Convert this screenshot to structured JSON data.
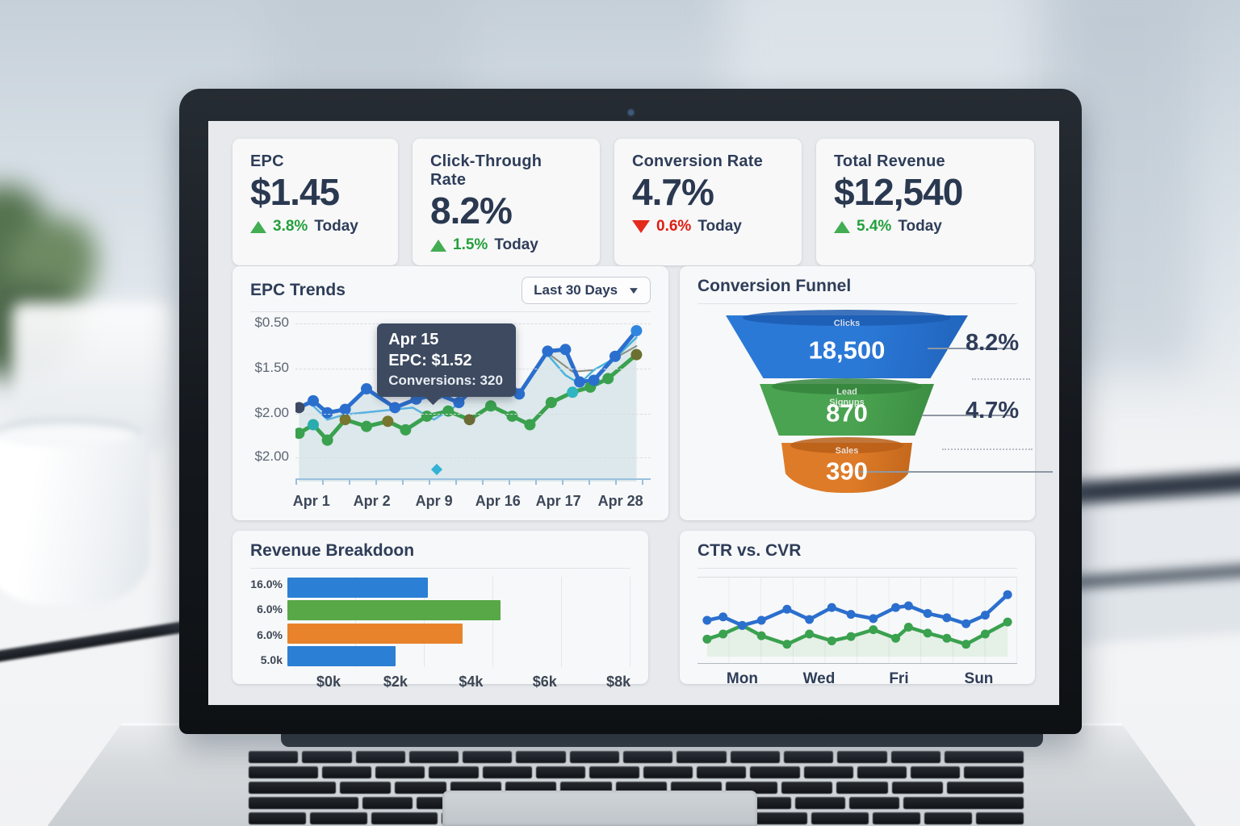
{
  "colors": {
    "accent_blue": "#2b6fce",
    "accent_green": "#3aa14f",
    "accent_orange": "#de7b28",
    "kpi_green": "#23a03c",
    "kpi_red": "#de1d12",
    "navy_text": "#2e3d59",
    "tooltip_bg": "#3d4a60"
  },
  "kpis": [
    {
      "title": "EPC",
      "value": "$1.45",
      "delta": "3.8%",
      "delta_suffix": "Today",
      "direction": "up"
    },
    {
      "title": "Click-Through Rate",
      "value": "8.2%",
      "delta": "1.5%",
      "delta_suffix": "Today",
      "direction": "up"
    },
    {
      "title": "Conversion Rate",
      "value": "4.7%",
      "delta": "0.6%",
      "delta_suffix": "Today",
      "direction": "down"
    },
    {
      "title": "Total Revenue",
      "value": "$12,540",
      "delta": "5.4%",
      "delta_suffix": "Today",
      "direction": "up"
    }
  ],
  "chart_data": [
    {
      "id": "epc_trends",
      "type": "line",
      "title": "EPC Trends",
      "range_label": "Last 30 Days",
      "y_ticks": [
        "$0.50",
        "$1.50",
        "$2.00",
        "$2.00"
      ],
      "y_tick_pos_pct": [
        4,
        30,
        56.5,
        82
      ],
      "x_ticks": [
        "Apr 1",
        "Apr 2",
        "Apr 9",
        "Apr 16",
        "Apr 17",
        "Apr 28"
      ],
      "x_tick_pos_pct": [
        4.5,
        21.5,
        39,
        57,
        74,
        91.5
      ],
      "tooltip": {
        "line1": "Apr 15",
        "line2": "EPC: $1.52",
        "line3": "Conversions: 320"
      },
      "series": [
        {
          "name": "connector-gray",
          "color": "#8a8d80",
          "width": 2,
          "dots": false,
          "points_pct": [
            [
              71,
              21
            ],
            [
              78,
              32
            ],
            [
              84,
              31
            ],
            [
              96,
              17
            ]
          ]
        },
        {
          "name": "secondary-light",
          "color": "#5ab0e2",
          "width": 2.5,
          "dots": false,
          "points_pct": [
            [
              5,
              52
            ],
            [
              9,
              60
            ],
            [
              14,
              57
            ],
            [
              33,
              53
            ],
            [
              39,
              60
            ],
            [
              46,
              51
            ]
          ]
        },
        {
          "name": "secondary-light-2",
          "color": "#49b4dc",
          "width": 2.5,
          "dots": false,
          "points_pct": [
            [
              71,
              22
            ],
            [
              76,
              34
            ],
            [
              80,
              39
            ],
            [
              84,
              31
            ],
            [
              90,
              24
            ],
            [
              96,
              12
            ]
          ]
        },
        {
          "name": "Conversions",
          "color": "#3aa14f",
          "width": 5,
          "dots": true,
          "dot_colors": {
            "1": "#2aacae",
            "3": "#76762f",
            "5": "#76762f",
            "9": "#6b6b35",
            "14": "#2fb4c2",
            "17": "#6b7030"
          },
          "points_pct": [
            [
              1,
              68
            ],
            [
              5,
              63
            ],
            [
              9,
              72
            ],
            [
              14,
              60
            ],
            [
              20,
              64
            ],
            [
              26,
              61
            ],
            [
              31,
              66
            ],
            [
              37,
              58
            ],
            [
              43,
              55
            ],
            [
              49,
              60
            ],
            [
              55,
              52
            ],
            [
              61,
              58
            ],
            [
              66,
              63
            ],
            [
              72,
              50
            ],
            [
              78,
              44
            ],
            [
              83,
              41
            ],
            [
              88,
              36
            ],
            [
              96,
              22
            ]
          ]
        },
        {
          "name": "EPC",
          "color": "#2b6fce",
          "width": 5,
          "dots": true,
          "area": "rgba(170,202,208,0.35)",
          "dot_colors": {
            "0": "#3d4a63",
            "17": "#2f86e0"
          },
          "points_pct": [
            [
              1,
              53
            ],
            [
              5,
              49
            ],
            [
              9,
              56
            ],
            [
              14,
              54
            ],
            [
              20,
              42
            ],
            [
              28,
              53
            ],
            [
              34,
              48
            ],
            [
              40,
              45
            ],
            [
              46,
              50
            ],
            [
              52,
              38
            ],
            [
              57,
              31
            ],
            [
              63,
              45
            ],
            [
              71,
              20
            ],
            [
              76,
              19
            ],
            [
              80,
              38
            ],
            [
              84,
              37
            ],
            [
              90,
              23
            ],
            [
              96,
              8
            ]
          ]
        }
      ]
    },
    {
      "id": "conversion_funnel",
      "type": "funnel",
      "title": "Conversion Funnel",
      "stages": [
        {
          "label": "Clicks",
          "label2": "",
          "value": "18,500",
          "rate": "8.2%",
          "color": "#2b79d7",
          "rim": "#1c5cb2"
        },
        {
          "label": "Lead",
          "label2": "Signups",
          "value": "870",
          "rate": "4.7%",
          "color": "#4aa350",
          "rim": "#35843c"
        },
        {
          "label": "Sales",
          "label2": "",
          "value": "390",
          "rate": "",
          "color": "#de7b28",
          "rim": "#b85f17"
        }
      ]
    },
    {
      "id": "revenue_breakdown",
      "type": "bar",
      "title": "Revenue Breakdoon",
      "orientation": "horizontal",
      "categories": [
        "16.0%",
        "6.0%",
        "6.0%",
        "5.0k"
      ],
      "values_k": [
        3.0,
        5.2,
        4.0,
        2.0
      ],
      "bar_width_pct": [
        41,
        62,
        51,
        31.5
      ],
      "bar_colors": [
        "#2b7fd4",
        "#58a847",
        "#e8832c",
        "#2b7fd4"
      ],
      "x_ticks": [
        "$0k",
        "$2k",
        "$4k",
        "$6k",
        "$8k"
      ],
      "x_tick_pos_pct": [
        12,
        31.5,
        53.5,
        75,
        96.5
      ]
    },
    {
      "id": "ctr_vs_cvr",
      "type": "line",
      "title": "CTR vs. CVR",
      "x_ticks": [
        "Mon",
        "Wed",
        "Fri",
        "Sun"
      ],
      "x_tick_pos_pct": [
        14,
        38,
        63,
        88
      ],
      "series": [
        {
          "name": "CVR",
          "color": "#3aa14f",
          "width": 4.5,
          "dots": true,
          "area": "rgba(120,190,120,0.14)",
          "points_pct": [
            [
              3,
              72
            ],
            [
              8,
              66
            ],
            [
              14,
              56
            ],
            [
              20,
              68
            ],
            [
              28,
              78
            ],
            [
              35,
              66
            ],
            [
              42,
              74
            ],
            [
              48,
              69
            ],
            [
              55,
              61
            ],
            [
              62,
              71
            ],
            [
              66,
              58
            ],
            [
              72,
              65
            ],
            [
              78,
              71
            ],
            [
              84,
              78
            ],
            [
              90,
              66
            ],
            [
              97,
              52
            ]
          ]
        },
        {
          "name": "CTR",
          "color": "#2b6fce",
          "width": 4.5,
          "dots": true,
          "points_pct": [
            [
              3,
              50
            ],
            [
              8,
              46
            ],
            [
              14,
              56
            ],
            [
              20,
              50
            ],
            [
              28,
              37
            ],
            [
              35,
              49
            ],
            [
              42,
              35
            ],
            [
              48,
              43
            ],
            [
              55,
              48
            ],
            [
              62,
              35
            ],
            [
              66,
              33
            ],
            [
              72,
              42
            ],
            [
              78,
              47
            ],
            [
              84,
              54
            ],
            [
              90,
              44
            ],
            [
              97,
              20
            ]
          ]
        }
      ]
    }
  ]
}
